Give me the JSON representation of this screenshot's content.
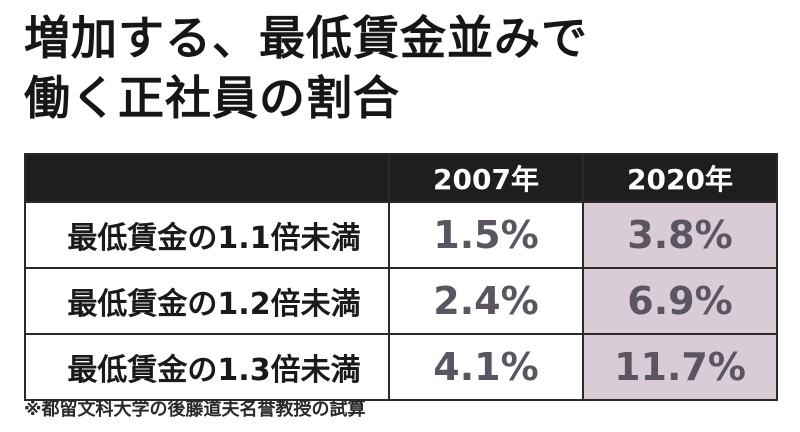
{
  "title": {
    "line1": "増加する、最低賃金並みで",
    "line2": "働く正社員の割合"
  },
  "chart_data": {
    "type": "table",
    "columns": [
      "",
      "2007年",
      "2020年"
    ],
    "rows": [
      {
        "label": "最低賃金の1.1倍未満",
        "values": [
          "1.5%",
          "3.8%"
        ]
      },
      {
        "label": "最低賃金の1.2倍未満",
        "values": [
          "2.4%",
          "6.9%"
        ]
      },
      {
        "label": "最低賃金の1.3倍未満",
        "values": [
          "4.1%",
          "11.7%"
        ]
      }
    ],
    "series": [
      {
        "name": "2007年",
        "values": [
          1.5,
          2.4,
          4.1
        ]
      },
      {
        "name": "2020年",
        "values": [
          3.8,
          6.9,
          11.7
        ]
      }
    ],
    "highlight_color": "#d9ccd6"
  },
  "note": "※都留文科大学の後藤道夫名誉教授の試算"
}
